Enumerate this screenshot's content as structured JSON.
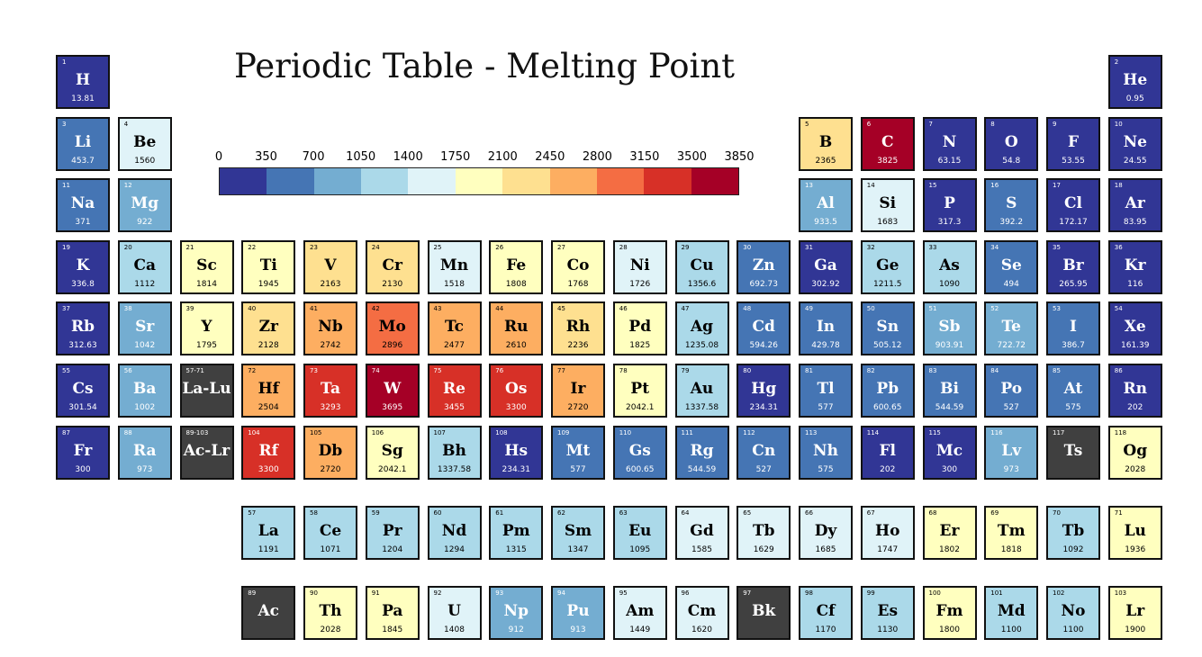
{
  "chart_data": {
    "type": "heatmap",
    "title": "Periodic Table - Melting Point",
    "colorbar": {
      "ticks": [
        "0",
        "350",
        "700",
        "1050",
        "1400",
        "1750",
        "2100",
        "2450",
        "2800",
        "3150",
        "3500",
        "3850"
      ],
      "colors": [
        "#313695",
        "#4575b4",
        "#74add1",
        "#abd9e9",
        "#e0f3f8",
        "#ffffbf",
        "#fee090",
        "#fdae61",
        "#f46d43",
        "#d73027",
        "#a50026"
      ]
    },
    "no_data_color": "#404040",
    "elements": [
      {
        "num": "1",
        "sym": "H",
        "val": "13.81",
        "row": 1,
        "col": 1
      },
      {
        "num": "2",
        "sym": "He",
        "val": "0.95",
        "row": 1,
        "col": 18
      },
      {
        "num": "3",
        "sym": "Li",
        "val": "453.7",
        "row": 2,
        "col": 1
      },
      {
        "num": "4",
        "sym": "Be",
        "val": "1560",
        "row": 2,
        "col": 2
      },
      {
        "num": "5",
        "sym": "B",
        "val": "2365",
        "row": 2,
        "col": 13
      },
      {
        "num": "6",
        "sym": "C",
        "val": "3825",
        "row": 2,
        "col": 14
      },
      {
        "num": "7",
        "sym": "N",
        "val": "63.15",
        "row": 2,
        "col": 15
      },
      {
        "num": "8",
        "sym": "O",
        "val": "54.8",
        "row": 2,
        "col": 16
      },
      {
        "num": "9",
        "sym": "F",
        "val": "53.55",
        "row": 2,
        "col": 17
      },
      {
        "num": "10",
        "sym": "Ne",
        "val": "24.55",
        "row": 2,
        "col": 18
      },
      {
        "num": "11",
        "sym": "Na",
        "val": "371",
        "row": 3,
        "col": 1
      },
      {
        "num": "12",
        "sym": "Mg",
        "val": "922",
        "row": 3,
        "col": 2
      },
      {
        "num": "13",
        "sym": "Al",
        "val": "933.5",
        "row": 3,
        "col": 13
      },
      {
        "num": "14",
        "sym": "Si",
        "val": "1683",
        "row": 3,
        "col": 14
      },
      {
        "num": "15",
        "sym": "P",
        "val": "317.3",
        "row": 3,
        "col": 15
      },
      {
        "num": "16",
        "sym": "S",
        "val": "392.2",
        "row": 3,
        "col": 16
      },
      {
        "num": "17",
        "sym": "Cl",
        "val": "172.17",
        "row": 3,
        "col": 17
      },
      {
        "num": "18",
        "sym": "Ar",
        "val": "83.95",
        "row": 3,
        "col": 18
      },
      {
        "num": "19",
        "sym": "K",
        "val": "336.8",
        "row": 4,
        "col": 1
      },
      {
        "num": "20",
        "sym": "Ca",
        "val": "1112",
        "row": 4,
        "col": 2
      },
      {
        "num": "21",
        "sym": "Sc",
        "val": "1814",
        "row": 4,
        "col": 3
      },
      {
        "num": "22",
        "sym": "Ti",
        "val": "1945",
        "row": 4,
        "col": 4
      },
      {
        "num": "23",
        "sym": "V",
        "val": "2163",
        "row": 4,
        "col": 5
      },
      {
        "num": "24",
        "sym": "Cr",
        "val": "2130",
        "row": 4,
        "col": 6
      },
      {
        "num": "25",
        "sym": "Mn",
        "val": "1518",
        "row": 4,
        "col": 7
      },
      {
        "num": "26",
        "sym": "Fe",
        "val": "1808",
        "row": 4,
        "col": 8
      },
      {
        "num": "27",
        "sym": "Co",
        "val": "1768",
        "row": 4,
        "col": 9
      },
      {
        "num": "28",
        "sym": "Ni",
        "val": "1726",
        "row": 4,
        "col": 10
      },
      {
        "num": "29",
        "sym": "Cu",
        "val": "1356.6",
        "row": 4,
        "col": 11
      },
      {
        "num": "30",
        "sym": "Zn",
        "val": "692.73",
        "row": 4,
        "col": 12
      },
      {
        "num": "31",
        "sym": "Ga",
        "val": "302.92",
        "row": 4,
        "col": 13
      },
      {
        "num": "32",
        "sym": "Ge",
        "val": "1211.5",
        "row": 4,
        "col": 14
      },
      {
        "num": "33",
        "sym": "As",
        "val": "1090",
        "row": 4,
        "col": 15
      },
      {
        "num": "34",
        "sym": "Se",
        "val": "494",
        "row": 4,
        "col": 16
      },
      {
        "num": "35",
        "sym": "Br",
        "val": "265.95",
        "row": 4,
        "col": 17
      },
      {
        "num": "36",
        "sym": "Kr",
        "val": "116",
        "row": 4,
        "col": 18
      },
      {
        "num": "37",
        "sym": "Rb",
        "val": "312.63",
        "row": 5,
        "col": 1
      },
      {
        "num": "38",
        "sym": "Sr",
        "val": "1042",
        "row": 5,
        "col": 2
      },
      {
        "num": "39",
        "sym": "Y",
        "val": "1795",
        "row": 5,
        "col": 3
      },
      {
        "num": "40",
        "sym": "Zr",
        "val": "2128",
        "row": 5,
        "col": 4
      },
      {
        "num": "41",
        "sym": "Nb",
        "val": "2742",
        "row": 5,
        "col": 5
      },
      {
        "num": "42",
        "sym": "Mo",
        "val": "2896",
        "row": 5,
        "col": 6
      },
      {
        "num": "43",
        "sym": "Tc",
        "val": "2477",
        "row": 5,
        "col": 7
      },
      {
        "num": "44",
        "sym": "Ru",
        "val": "2610",
        "row": 5,
        "col": 8
      },
      {
        "num": "45",
        "sym": "Rh",
        "val": "2236",
        "row": 5,
        "col": 9
      },
      {
        "num": "46",
        "sym": "Pd",
        "val": "1825",
        "row": 5,
        "col": 10
      },
      {
        "num": "47",
        "sym": "Ag",
        "val": "1235.08",
        "row": 5,
        "col": 11
      },
      {
        "num": "48",
        "sym": "Cd",
        "val": "594.26",
        "row": 5,
        "col": 12
      },
      {
        "num": "49",
        "sym": "In",
        "val": "429.78",
        "row": 5,
        "col": 13
      },
      {
        "num": "50",
        "sym": "Sn",
        "val": "505.12",
        "row": 5,
        "col": 14
      },
      {
        "num": "51",
        "sym": "Sb",
        "val": "903.91",
        "row": 5,
        "col": 15
      },
      {
        "num": "52",
        "sym": "Te",
        "val": "722.72",
        "row": 5,
        "col": 16
      },
      {
        "num": "53",
        "sym": "I",
        "val": "386.7",
        "row": 5,
        "col": 17
      },
      {
        "num": "54",
        "sym": "Xe",
        "val": "161.39",
        "row": 5,
        "col": 18
      },
      {
        "num": "55",
        "sym": "Cs",
        "val": "301.54",
        "row": 6,
        "col": 1
      },
      {
        "num": "56",
        "sym": "Ba",
        "val": "1002",
        "row": 6,
        "col": 2
      },
      {
        "num": "57-71",
        "sym": "La-Lu",
        "val": "",
        "row": 6,
        "col": 3
      },
      {
        "num": "72",
        "sym": "Hf",
        "val": "2504",
        "row": 6,
        "col": 4
      },
      {
        "num": "73",
        "sym": "Ta",
        "val": "3293",
        "row": 6,
        "col": 5
      },
      {
        "num": "74",
        "sym": "W",
        "val": "3695",
        "row": 6,
        "col": 6
      },
      {
        "num": "75",
        "sym": "Re",
        "val": "3455",
        "row": 6,
        "col": 7
      },
      {
        "num": "76",
        "sym": "Os",
        "val": "3300",
        "row": 6,
        "col": 8
      },
      {
        "num": "77",
        "sym": "Ir",
        "val": "2720",
        "row": 6,
        "col": 9
      },
      {
        "num": "78",
        "sym": "Pt",
        "val": "2042.1",
        "row": 6,
        "col": 10
      },
      {
        "num": "79",
        "sym": "Au",
        "val": "1337.58",
        "row": 6,
        "col": 11
      },
      {
        "num": "80",
        "sym": "Hg",
        "val": "234.31",
        "row": 6,
        "col": 12
      },
      {
        "num": "81",
        "sym": "Tl",
        "val": "577",
        "row": 6,
        "col": 13
      },
      {
        "num": "82",
        "sym": "Pb",
        "val": "600.65",
        "row": 6,
        "col": 14
      },
      {
        "num": "83",
        "sym": "Bi",
        "val": "544.59",
        "row": 6,
        "col": 15
      },
      {
        "num": "84",
        "sym": "Po",
        "val": "527",
        "row": 6,
        "col": 16
      },
      {
        "num": "85",
        "sym": "At",
        "val": "575",
        "row": 6,
        "col": 17
      },
      {
        "num": "86",
        "sym": "Rn",
        "val": "202",
        "row": 6,
        "col": 18
      },
      {
        "num": "87",
        "sym": "Fr",
        "val": "300",
        "row": 7,
        "col": 1
      },
      {
        "num": "88",
        "sym": "Ra",
        "val": "973",
        "row": 7,
        "col": 2
      },
      {
        "num": "89-103",
        "sym": "Ac-Lr",
        "val": "",
        "row": 7,
        "col": 3
      },
      {
        "num": "104",
        "sym": "Rf",
        "val": "3300",
        "row": 7,
        "col": 4
      },
      {
        "num": "105",
        "sym": "Db",
        "val": "2720",
        "row": 7,
        "col": 5
      },
      {
        "num": "106",
        "sym": "Sg",
        "val": "2042.1",
        "row": 7,
        "col": 6
      },
      {
        "num": "107",
        "sym": "Bh",
        "val": "1337.58",
        "row": 7,
        "col": 7
      },
      {
        "num": "108",
        "sym": "Hs",
        "val": "234.31",
        "row": 7,
        "col": 8
      },
      {
        "num": "109",
        "sym": "Mt",
        "val": "577",
        "row": 7,
        "col": 9
      },
      {
        "num": "110",
        "sym": "Gs",
        "val": "600.65",
        "row": 7,
        "col": 10
      },
      {
        "num": "111",
        "sym": "Rg",
        "val": "544.59",
        "row": 7,
        "col": 11
      },
      {
        "num": "112",
        "sym": "Cn",
        "val": "527",
        "row": 7,
        "col": 12
      },
      {
        "num": "113",
        "sym": "Nh",
        "val": "575",
        "row": 7,
        "col": 13
      },
      {
        "num": "114",
        "sym": "Fl",
        "val": "202",
        "row": 7,
        "col": 14
      },
      {
        "num": "115",
        "sym": "Mc",
        "val": "300",
        "row": 7,
        "col": 15
      },
      {
        "num": "116",
        "sym": "Lv",
        "val": "973",
        "row": 7,
        "col": 16
      },
      {
        "num": "117",
        "sym": "Ts",
        "val": "",
        "row": 7,
        "col": 17
      },
      {
        "num": "118",
        "sym": "Og",
        "val": "2028",
        "row": 7,
        "col": 18
      },
      {
        "num": "57",
        "sym": "La",
        "val": "1191",
        "row": 9,
        "col": 4
      },
      {
        "num": "58",
        "sym": "Ce",
        "val": "1071",
        "row": 9,
        "col": 5
      },
      {
        "num": "59",
        "sym": "Pr",
        "val": "1204",
        "row": 9,
        "col": 6
      },
      {
        "num": "60",
        "sym": "Nd",
        "val": "1294",
        "row": 9,
        "col": 7
      },
      {
        "num": "61",
        "sym": "Pm",
        "val": "1315",
        "row": 9,
        "col": 8
      },
      {
        "num": "62",
        "sym": "Sm",
        "val": "1347",
        "row": 9,
        "col": 9
      },
      {
        "num": "63",
        "sym": "Eu",
        "val": "1095",
        "row": 9,
        "col": 10
      },
      {
        "num": "64",
        "sym": "Gd",
        "val": "1585",
        "row": 9,
        "col": 11
      },
      {
        "num": "65",
        "sym": "Tb",
        "val": "1629",
        "row": 9,
        "col": 12
      },
      {
        "num": "66",
        "sym": "Dy",
        "val": "1685",
        "row": 9,
        "col": 13
      },
      {
        "num": "67",
        "sym": "Ho",
        "val": "1747",
        "row": 9,
        "col": 14
      },
      {
        "num": "68",
        "sym": "Er",
        "val": "1802",
        "row": 9,
        "col": 15
      },
      {
        "num": "69",
        "sym": "Tm",
        "val": "1818",
        "row": 9,
        "col": 16
      },
      {
        "num": "70",
        "sym": "Tb",
        "val": "1092",
        "row": 9,
        "col": 17
      },
      {
        "num": "71",
        "sym": "Lu",
        "val": "1936",
        "row": 9,
        "col": 18
      },
      {
        "num": "89",
        "sym": "Ac",
        "val": "",
        "row": 10,
        "col": 4
      },
      {
        "num": "90",
        "sym": "Th",
        "val": "2028",
        "row": 10,
        "col": 5
      },
      {
        "num": "91",
        "sym": "Pa",
        "val": "1845",
        "row": 10,
        "col": 6
      },
      {
        "num": "92",
        "sym": "U",
        "val": "1408",
        "row": 10,
        "col": 7
      },
      {
        "num": "93",
        "sym": "Np",
        "val": "912",
        "row": 10,
        "col": 8
      },
      {
        "num": "94",
        "sym": "Pu",
        "val": "913",
        "row": 10,
        "col": 9
      },
      {
        "num": "95",
        "sym": "Am",
        "val": "1449",
        "row": 10,
        "col": 10
      },
      {
        "num": "96",
        "sym": "Cm",
        "val": "1620",
        "row": 10,
        "col": 11
      },
      {
        "num": "97",
        "sym": "Bk",
        "val": "",
        "row": 10,
        "col": 12
      },
      {
        "num": "98",
        "sym": "Cf",
        "val": "1170",
        "row": 10,
        "col": 13
      },
      {
        "num": "99",
        "sym": "Es",
        "val": "1130",
        "row": 10,
        "col": 14
      },
      {
        "num": "100",
        "sym": "Fm",
        "val": "1800",
        "row": 10,
        "col": 15
      },
      {
        "num": "101",
        "sym": "Md",
        "val": "1100",
        "row": 10,
        "col": 16
      },
      {
        "num": "102",
        "sym": "No",
        "val": "1100",
        "row": 10,
        "col": 17
      },
      {
        "num": "103",
        "sym": "Lr",
        "val": "1900",
        "row": 10,
        "col": 18
      }
    ]
  }
}
